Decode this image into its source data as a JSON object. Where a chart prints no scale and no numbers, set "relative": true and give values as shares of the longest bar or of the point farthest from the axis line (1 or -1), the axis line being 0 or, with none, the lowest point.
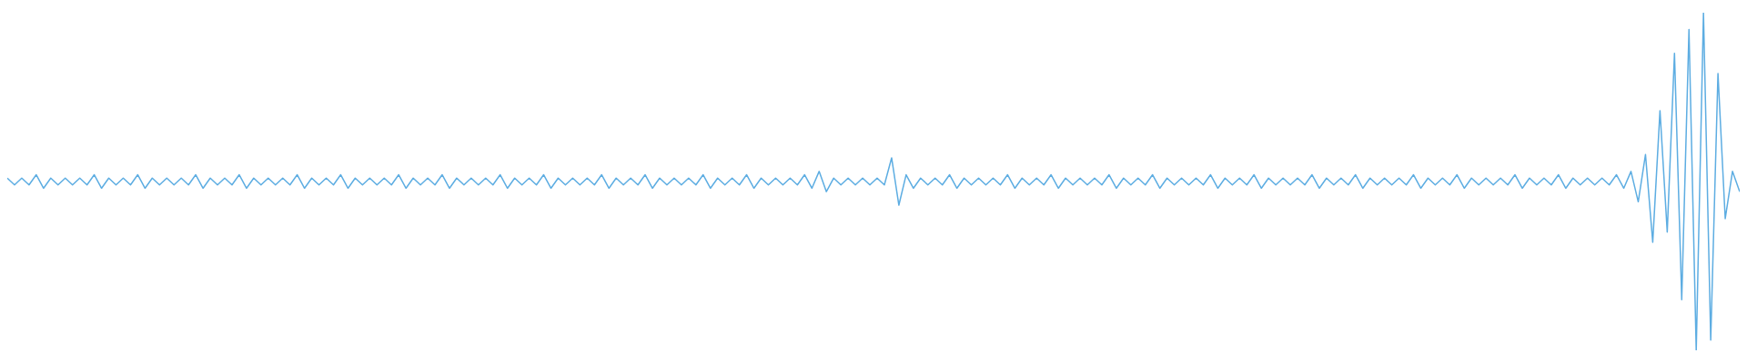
{
  "chart_data": {
    "type": "line",
    "relative": true,
    "grid": false,
    "legend": false,
    "marker": "none",
    "line_style": "solid",
    "categories": [
      null,
      null,
      null,
      null,
      null,
      null,
      null,
      null,
      null,
      null,
      null,
      null,
      null,
      null,
      null,
      null,
      null,
      null,
      null,
      null,
      null,
      null,
      null,
      null,
      null,
      null,
      null,
      null,
      null,
      null,
      null,
      null,
      null,
      null,
      null,
      null,
      null,
      null,
      null,
      null,
      null,
      null,
      null,
      null,
      null,
      null,
      null,
      null,
      null,
      null,
      null,
      null,
      null,
      null,
      null,
      null,
      null,
      null,
      null,
      null,
      null,
      null,
      null,
      null,
      null,
      null,
      null,
      null,
      null,
      null,
      null,
      null,
      null,
      null,
      null,
      null,
      null,
      null,
      null,
      null,
      null,
      null,
      null,
      null,
      null,
      null,
      null,
      null,
      null,
      null,
      null,
      null,
      null,
      null,
      null,
      null,
      null,
      null,
      null,
      null,
      null,
      null,
      null,
      null,
      null,
      null,
      null,
      null,
      null,
      null,
      null,
      null,
      null,
      null,
      null,
      null,
      null,
      null,
      null,
      null,
      null,
      null,
      null,
      null,
      null,
      null,
      null,
      null,
      null,
      null,
      null,
      null,
      null,
      null,
      null,
      null,
      null,
      null,
      null,
      null,
      null,
      null,
      null,
      null,
      null,
      null,
      null,
      null,
      null,
      null,
      null,
      null,
      null,
      null,
      null,
      null,
      null,
      null,
      null,
      null,
      null,
      null,
      null,
      null,
      null,
      null,
      null,
      null,
      null,
      null,
      null,
      null,
      null,
      null,
      null,
      null,
      null,
      null,
      null,
      null,
      null,
      null,
      null,
      null,
      null,
      null,
      null,
      null,
      null,
      null,
      null,
      null,
      null,
      null,
      null,
      null,
      null,
      null,
      null,
      null,
      null,
      null,
      null,
      null,
      null,
      null,
      null,
      null,
      null,
      null,
      null,
      null,
      null,
      null,
      null,
      null,
      null,
      null,
      null,
      null,
      null,
      null,
      null,
      null,
      null,
      null,
      null,
      null,
      null,
      null,
      null,
      null,
      null,
      null,
      null,
      null,
      null,
      null,
      null,
      null
    ],
    "series": [
      {
        "color": "#5dade2",
        "values": [
          0.51,
          0.49,
          0.51,
          0.49,
          0.52,
          0.48,
          0.51,
          0.49,
          0.51,
          0.49,
          0.51,
          0.49,
          0.52,
          0.48,
          0.51,
          0.49,
          0.51,
          0.49,
          0.52,
          0.48,
          0.51,
          0.49,
          0.51,
          0.49,
          0.51,
          0.49,
          0.52,
          0.48,
          0.51,
          0.49,
          0.51,
          0.49,
          0.52,
          0.48,
          0.51,
          0.49,
          0.51,
          0.49,
          0.51,
          0.49,
          0.52,
          0.48,
          0.51,
          0.49,
          0.51,
          0.49,
          0.52,
          0.48,
          0.51,
          0.49,
          0.51,
          0.49,
          0.51,
          0.49,
          0.52,
          0.48,
          0.51,
          0.49,
          0.51,
          0.49,
          0.52,
          0.48,
          0.51,
          0.49,
          0.51,
          0.49,
          0.51,
          0.49,
          0.52,
          0.48,
          0.51,
          0.49,
          0.51,
          0.49,
          0.52,
          0.48,
          0.51,
          0.49,
          0.51,
          0.49,
          0.51,
          0.49,
          0.52,
          0.48,
          0.51,
          0.49,
          0.51,
          0.49,
          0.52,
          0.48,
          0.51,
          0.49,
          0.51,
          0.49,
          0.51,
          0.49,
          0.52,
          0.48,
          0.51,
          0.49,
          0.51,
          0.49,
          0.52,
          0.48,
          0.51,
          0.49,
          0.51,
          0.49,
          0.51,
          0.49,
          0.52,
          0.48,
          0.53,
          0.47,
          0.51,
          0.49,
          0.51,
          0.49,
          0.51,
          0.49,
          0.51,
          0.49,
          0.57,
          0.43,
          0.52,
          0.48,
          0.51,
          0.49,
          0.51,
          0.49,
          0.52,
          0.48,
          0.51,
          0.49,
          0.51,
          0.49,
          0.51,
          0.49,
          0.52,
          0.48,
          0.51,
          0.49,
          0.51,
          0.49,
          0.52,
          0.48,
          0.51,
          0.49,
          0.51,
          0.49,
          0.51,
          0.49,
          0.52,
          0.48,
          0.51,
          0.49,
          0.51,
          0.49,
          0.52,
          0.48,
          0.51,
          0.49,
          0.51,
          0.49,
          0.51,
          0.49,
          0.52,
          0.48,
          0.51,
          0.49,
          0.51,
          0.49,
          0.52,
          0.48,
          0.51,
          0.49,
          0.51,
          0.49,
          0.51,
          0.49,
          0.52,
          0.48,
          0.51,
          0.49,
          0.51,
          0.49,
          0.52,
          0.48,
          0.51,
          0.49,
          0.51,
          0.49,
          0.51,
          0.49,
          0.52,
          0.48,
          0.51,
          0.49,
          0.51,
          0.49,
          0.52,
          0.48,
          0.51,
          0.49,
          0.51,
          0.49,
          0.51,
          0.49,
          0.52,
          0.48,
          0.51,
          0.49,
          0.51,
          0.49,
          0.52,
          0.48,
          0.51,
          0.49,
          0.51,
          0.49,
          0.51,
          0.49,
          0.52,
          0.48,
          0.53,
          0.44,
          0.58,
          0.32,
          0.71,
          0.35,
          0.88,
          0.15,
          0.95,
          0,
          1,
          0.03,
          0.82,
          0.39,
          0.53,
          0.47
        ]
      }
    ]
  }
}
